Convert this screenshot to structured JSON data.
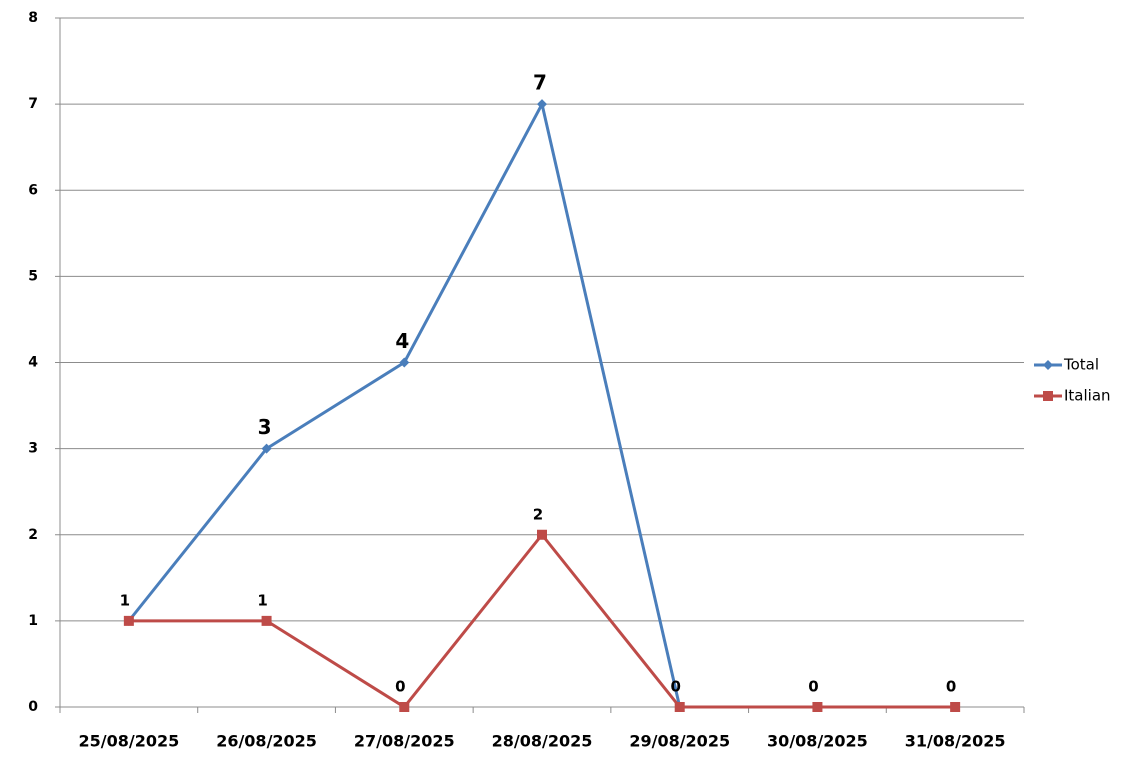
{
  "chart_data": {
    "type": "line",
    "categories": [
      "25/08/2025",
      "26/08/2025",
      "27/08/2025",
      "28/08/2025",
      "29/08/2025",
      "30/08/2025",
      "31/08/2025"
    ],
    "series": [
      {
        "name": "Total",
        "color": "#4a7ebb",
        "marker": "diamond",
        "values": [
          1,
          3,
          4,
          7,
          0,
          0,
          0
        ],
        "value_labels": [
          null,
          "3",
          "4",
          "7",
          null,
          null,
          null
        ]
      },
      {
        "name": "Italian",
        "color": "#be4b48",
        "marker": "square",
        "values": [
          1,
          1,
          0,
          2,
          0,
          0,
          0
        ]
      }
    ],
    "ylim": [
      0,
      8
    ],
    "yticks": [
      0,
      1,
      2,
      3,
      4,
      5,
      6,
      7,
      8
    ],
    "grid": true,
    "legend": "right"
  }
}
